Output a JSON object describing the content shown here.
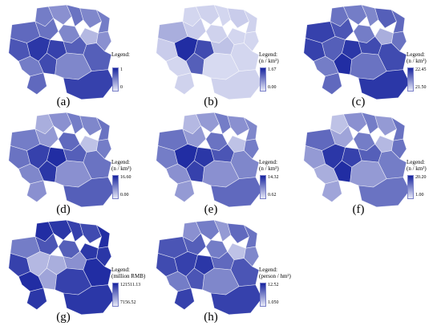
{
  "colors": {
    "light": "#e8eaf8",
    "dark": "#16239e"
  },
  "panels": [
    {
      "label": "(a)",
      "legend_title": "Legend:",
      "legend_unit": "",
      "legend_max": "1",
      "legend_min": "0",
      "shade": [
        0.55,
        0.45,
        0.6,
        0.5,
        0.55,
        0.25,
        0.65,
        0.6,
        0.5,
        0.45,
        0.85,
        0.7,
        0.75,
        0.9,
        0.8,
        0.55,
        0.65,
        0.7,
        0.5,
        0.85
      ]
    },
    {
      "label": "(b)",
      "legend_title": "Legend:",
      "legend_unit": "(n / km²)",
      "legend_max": "1.67",
      "legend_min": "0.00",
      "shade": [
        0.1,
        0.12,
        0.1,
        0.15,
        0.12,
        0.1,
        0.3,
        0.15,
        0.12,
        0.1,
        0.8,
        0.2,
        0.15,
        0.95,
        0.7,
        0.1,
        0.12,
        0.1,
        0.08,
        0.12
      ]
    },
    {
      "label": "(c)",
      "legend_title": "Legend:",
      "legend_unit": "(n / km²)",
      "legend_max": "22.45",
      "legend_min": "21.50",
      "shade": [
        0.6,
        0.55,
        0.5,
        0.7,
        0.65,
        0.3,
        0.85,
        0.75,
        0.55,
        0.6,
        0.9,
        0.8,
        0.85,
        0.7,
        0.95,
        0.55,
        0.65,
        0.8,
        0.6,
        0.9
      ]
    },
    {
      "label": "(d)",
      "legend_title": "Legend:",
      "legend_unit": "(n / km²)",
      "legend_max": "16.60",
      "legend_min": "0.00",
      "shade": [
        0.3,
        0.45,
        0.55,
        0.5,
        0.6,
        0.2,
        0.55,
        0.4,
        0.65,
        0.55,
        0.95,
        0.7,
        0.6,
        0.85,
        0.9,
        0.5,
        0.45,
        0.6,
        0.45,
        0.7
      ]
    },
    {
      "label": "(e)",
      "legend_title": "Legend:",
      "legend_unit": "(n / km²)",
      "legend_max": "14.32",
      "legend_min": "0.62",
      "shade": [
        0.25,
        0.4,
        0.55,
        0.45,
        0.5,
        0.2,
        0.6,
        0.4,
        0.6,
        0.55,
        0.9,
        0.75,
        0.55,
        0.95,
        0.85,
        0.45,
        0.4,
        0.5,
        0.45,
        0.65
      ]
    },
    {
      "label": "(f)",
      "legend_title": "Legend:",
      "legend_unit": "(n / km²)",
      "legend_max": "20.20",
      "legend_min": "1.00",
      "shade": [
        0.2,
        0.45,
        0.55,
        0.4,
        0.6,
        0.25,
        0.65,
        0.35,
        0.55,
        0.6,
        0.85,
        0.7,
        0.4,
        0.9,
        0.95,
        0.3,
        0.35,
        0.55,
        0.4,
        0.6
      ]
    },
    {
      "label": "(g)",
      "legend_title": "Legend:",
      "legend_unit": "(million RMB)",
      "legend_max": "121511.13",
      "legend_min": "7156.52",
      "shade": [
        0.95,
        0.9,
        0.85,
        0.8,
        0.95,
        0.9,
        0.55,
        0.75,
        0.7,
        0.9,
        0.3,
        0.45,
        0.85,
        0.25,
        0.35,
        0.95,
        0.9,
        0.95,
        0.85,
        0.9
      ]
    },
    {
      "label": "(h)",
      "legend_title": "Legend:",
      "legend_unit": "(person / hm²)",
      "legend_max": "12.52",
      "legend_min": "1.050",
      "shade": [
        0.45,
        0.55,
        0.4,
        0.65,
        0.6,
        0.2,
        0.75,
        0.7,
        0.55,
        0.5,
        0.9,
        0.65,
        0.8,
        0.85,
        0.75,
        0.55,
        0.85,
        0.75,
        0.5,
        0.85
      ]
    }
  ]
}
